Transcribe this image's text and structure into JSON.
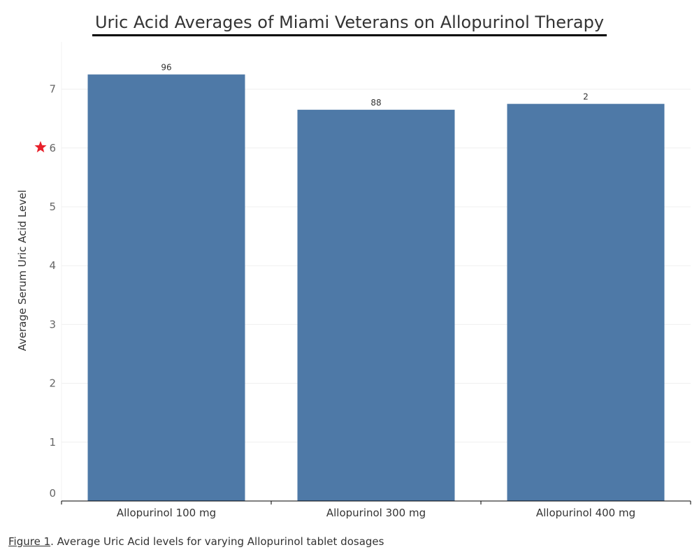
{
  "chart_data": {
    "type": "bar",
    "title": "Uric Acid Averages of Miami Veterans on Allopurinol Therapy",
    "xlabel": "",
    "ylabel": "Average Serum Uric Acid Level",
    "categories": [
      "Allopurinol 100 mg",
      "Allopurinol 300 mg",
      "Allopurinol 400 mg"
    ],
    "values": [
      7.25,
      6.65,
      6.75
    ],
    "data_labels": [
      "96",
      "88",
      "2"
    ],
    "ylim": [
      0,
      7.4
    ],
    "yticks": [
      0,
      1,
      2,
      3,
      4,
      5,
      6,
      7
    ],
    "grid": true,
    "bar_color": "#4e79a7",
    "marker": {
      "icon": "star-icon",
      "at_tick": 6,
      "color": "#e8202a"
    }
  },
  "caption": {
    "figure_label": "Figure 1",
    "text": ". Average Uric Acid levels for varying Allopurinol tablet dosages"
  }
}
